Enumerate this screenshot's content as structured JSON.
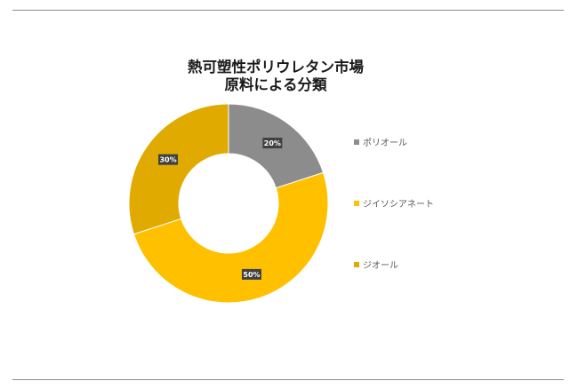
{
  "chart_data": {
    "type": "pie",
    "variant": "donut",
    "title_lines": [
      "熱可塑性ポリウレタン市場",
      "原料による分類"
    ],
    "categories": [
      "ポリオール",
      "ジイソシアネート",
      "ジオール"
    ],
    "values": [
      20,
      50,
      30
    ],
    "data_labels": [
      "20%",
      "50%",
      "30%"
    ],
    "colors": [
      "#8c8c8c",
      "#ffc000",
      "#e0aa00"
    ],
    "legend_position": "right",
    "data_label_style": "dark boxes with white bold text"
  }
}
